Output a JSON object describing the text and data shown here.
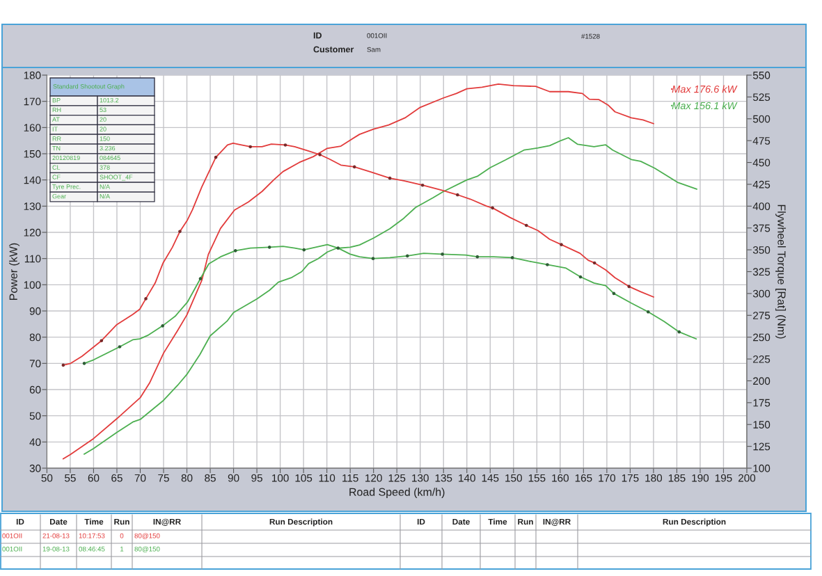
{
  "chart_data": {
    "type": "line",
    "xlabel": "Road Speed (km/h)",
    "ylabel": "Power (kW)",
    "y2label": "Flywheel Torque [Rat] (Nm)",
    "xlim": [
      50,
      200
    ],
    "xticks": [
      50,
      55,
      60,
      65,
      70,
      75,
      80,
      85,
      90,
      95,
      100,
      105,
      110,
      115,
      120,
      125,
      130,
      135,
      140,
      145,
      150,
      155,
      160,
      165,
      170,
      175,
      180,
      185,
      190,
      195,
      200
    ],
    "ylim": [
      30,
      180
    ],
    "yticks": [
      30,
      40,
      50,
      60,
      70,
      80,
      90,
      100,
      110,
      120,
      130,
      140,
      150,
      160,
      170,
      180
    ],
    "y2lim": [
      100,
      550
    ],
    "y2ticks": [
      100,
      125,
      150,
      175,
      200,
      225,
      250,
      275,
      300,
      325,
      350,
      375,
      400,
      425,
      450,
      475,
      500,
      525,
      550
    ],
    "grid": true,
    "legend": "top right",
    "series": [
      {
        "name": "Max 176.6 kW",
        "color": "#e23b3b",
        "x": [
          53.5,
          55,
          60,
          65,
          70,
          72,
          75,
          78,
          80,
          83.2,
          84.6,
          87.2,
          90.2,
          93.2,
          96.1,
          98.6,
          100.6,
          104.1,
          107.1,
          110,
          113,
          115,
          117,
          120,
          123.25,
          126.75,
          130,
          135,
          137.75,
          140,
          143.25,
          146.75,
          150,
          154.75,
          157.75,
          161.75,
          164.75,
          166.25,
          168.25,
          170.25,
          171.75,
          175.25,
          177.75,
          180
        ],
        "values": [
          33.6,
          35.2,
          41.3,
          48.9,
          56.9,
          62.5,
          73.9,
          82.5,
          88.5,
          101.7,
          111.6,
          121.5,
          128.5,
          131.6,
          135.6,
          140.0,
          143.2,
          146.7,
          148.9,
          152.0,
          152.9,
          155.2,
          157.4,
          159.4,
          161.0,
          163.7,
          167.7,
          171.3,
          173.0,
          174.8,
          175.4,
          176.6,
          176.0,
          175.7,
          173.7,
          173.7,
          173.0,
          170.8,
          170.7,
          168.6,
          166.0,
          163.7,
          162.9,
          161.5
        ]
      },
      {
        "name": "Max 156.1 kW",
        "color": "#4caf50",
        "x": [
          58,
          60,
          65,
          68.4,
          70,
          75,
          78,
          80,
          82.8,
          85,
          88.6,
          90,
          95,
          97.7,
          99.6,
          102.5,
          104.6,
          106.1,
          108.1,
          110.1,
          112,
          115,
          117,
          120,
          123.5,
          126.5,
          129,
          132.75,
          135,
          140,
          142.25,
          145,
          148.25,
          152.25,
          155.25,
          157.75,
          160.25,
          161.75,
          163.75,
          167.25,
          169.75,
          171.25,
          175.25,
          177.25,
          180.25,
          185.25,
          189.25
        ],
        "values": [
          35.4,
          37.5,
          43.7,
          47.6,
          48.6,
          55.9,
          61.6,
          65.8,
          73.4,
          80.5,
          86.1,
          89.4,
          94.6,
          97.9,
          101.0,
          102.8,
          105.0,
          108.1,
          109.9,
          112.5,
          113.9,
          114.3,
          115.2,
          117.8,
          121.4,
          125.4,
          129.5,
          133.2,
          135.6,
          140.0,
          141.4,
          144.7,
          147.6,
          151.4,
          152.2,
          153.1,
          155.1,
          156.1,
          153.6,
          152.7,
          153.4,
          151.4,
          147.8,
          147.1,
          144.5,
          139.0,
          136.5
        ]
      },
      {
        "color": "#e23b3b",
        "axis": "y2",
        "x": [
          53.5,
          55.1,
          57.5,
          61.7,
          64.9,
          68.4,
          69.9,
          71.2,
          73.2,
          74.9,
          76.9,
          78.5,
          80.1,
          81.2,
          83.2,
          86.2,
          88.7,
          89.9,
          91.7,
          93.6,
          96.1,
          98.1,
          101.1,
          103.1,
          106.1,
          108.5,
          110.5,
          113,
          115.9,
          119.5,
          123.5,
          126.5,
          130.5,
          134.75,
          138,
          140.75,
          144.25,
          145.5,
          149.25,
          152.75,
          155.25,
          157.75,
          160.25,
          164.25,
          166,
          167.35,
          169.75,
          171.75,
          174.75,
          177.25,
          180
        ],
        "values": [
          218,
          220,
          228,
          246,
          264,
          276,
          282,
          294,
          312,
          335,
          353,
          371,
          384,
          396,
          422,
          456,
          470,
          472,
          470,
          468,
          468,
          471,
          470,
          468,
          463,
          459,
          454,
          447,
          445,
          439,
          432,
          429,
          424,
          418,
          413,
          408,
          400,
          398,
          387,
          378,
          372,
          362,
          356,
          346,
          338,
          335,
          327,
          318,
          308,
          302,
          296
        ]
      },
      {
        "color": "#4caf50",
        "axis": "y2",
        "x": [
          58,
          60,
          65.6,
          68.4,
          69.9,
          71.6,
          74.8,
          77.5,
          80.1,
          82.9,
          84.7,
          87.2,
          90.4,
          93.6,
          97.7,
          100.6,
          103.1,
          105.1,
          107.6,
          110.1,
          112.4,
          115,
          117,
          119.9,
          123.5,
          127.25,
          130.75,
          134.75,
          139.75,
          142.25,
          145.75,
          149.75,
          153.25,
          157.25,
          161.25,
          164.35,
          167.25,
          169.75,
          171.5,
          175.25,
          178.85,
          182.25,
          185.5,
          189.15
        ],
        "values": [
          220,
          224,
          239,
          247,
          248,
          252,
          263,
          274,
          290,
          317,
          334,
          342,
          349,
          352,
          353,
          354,
          352,
          350,
          353,
          356,
          352,
          345,
          342,
          340,
          341,
          343,
          346,
          345,
          344,
          342,
          342,
          341,
          337,
          333,
          329,
          319,
          312,
          309,
          300,
          289,
          279,
          268,
          256,
          248
        ]
      },
      {
        "type": "scatter",
        "color": "#7a2a2a",
        "axis": "y2",
        "marker": "circle",
        "x": [
          53.5,
          61.7,
          71.2,
          78.5,
          86.2,
          93.6,
          101.1,
          108.5,
          115.9,
          123.5,
          130.5,
          138,
          145.5,
          152.75,
          160.25,
          167.35,
          174.75
        ],
        "values": [
          218,
          246,
          294,
          371,
          456,
          468,
          470,
          459,
          445,
          432,
          424,
          413,
          398,
          378,
          356,
          335,
          308
        ]
      },
      {
        "type": "scatter",
        "color": "#2e5e36",
        "axis": "y2",
        "marker": "circle",
        "x": [
          58,
          65.6,
          74.8,
          82.9,
          90.4,
          97.7,
          105.1,
          112.4,
          119.9,
          127.25,
          134.75,
          142.25,
          149.75,
          157.25,
          164.35,
          171.5,
          178.85,
          185.5
        ],
        "values": [
          220,
          239,
          263,
          317,
          349,
          353,
          350,
          352,
          340,
          343,
          345,
          342,
          341,
          333,
          319,
          300,
          279,
          256
        ]
      }
    ],
    "annotations": [
      "ID",
      "001OII",
      "Customer",
      "Sam",
      "#1528",
      "ID",
      "Date",
      "Time",
      "Run",
      "IN@RR",
      "Run Description",
      "ID",
      "Date",
      "Time",
      "Run",
      "IN@RR",
      "Run Description",
      "001OII",
      "21-08-13",
      "10:17:53",
      "0",
      "80@150",
      "001OII",
      "19-08-13",
      "08:46:45",
      "1",
      "80@150",
      "Standard Shootout Graph",
      "BP",
      "1013.2",
      "RH",
      "53",
      "AT",
      "20",
      "IT",
      "20",
      "RR",
      "150",
      "TN",
      "3.236",
      "20120819",
      "084645",
      "CL",
      "378",
      "CF",
      "SHOOT_4F",
      "Tyre Prec.",
      "N/A",
      "Gear",
      "N/A"
    ]
  }
}
